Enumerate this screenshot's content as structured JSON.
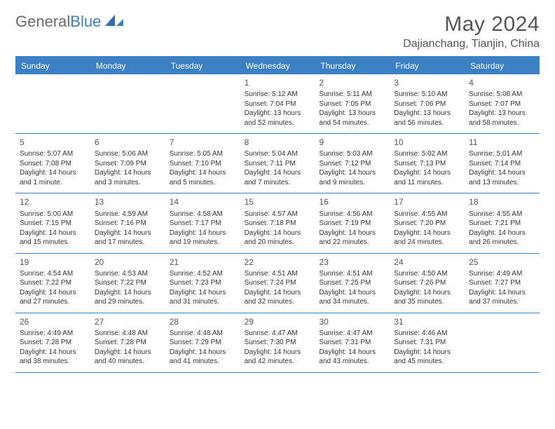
{
  "brand": {
    "name_a": "General",
    "name_b": "Blue"
  },
  "title": "May 2024",
  "location": "Dajianchang, Tianjin, China",
  "colors": {
    "accent": "#3b7fc4",
    "text": "#333333",
    "muted": "#555555",
    "bg": "#ffffff"
  },
  "weekdays": [
    "Sunday",
    "Monday",
    "Tuesday",
    "Wednesday",
    "Thursday",
    "Friday",
    "Saturday"
  ],
  "weeks": [
    [
      null,
      null,
      null,
      {
        "n": "1",
        "sr": "Sunrise: 5:12 AM",
        "ss": "Sunset: 7:04 PM",
        "d1": "Daylight: 13 hours",
        "d2": "and 52 minutes."
      },
      {
        "n": "2",
        "sr": "Sunrise: 5:11 AM",
        "ss": "Sunset: 7:05 PM",
        "d1": "Daylight: 13 hours",
        "d2": "and 54 minutes."
      },
      {
        "n": "3",
        "sr": "Sunrise: 5:10 AM",
        "ss": "Sunset: 7:06 PM",
        "d1": "Daylight: 13 hours",
        "d2": "and 56 minutes."
      },
      {
        "n": "4",
        "sr": "Sunrise: 5:08 AM",
        "ss": "Sunset: 7:07 PM",
        "d1": "Daylight: 13 hours",
        "d2": "and 58 minutes."
      }
    ],
    [
      {
        "n": "5",
        "sr": "Sunrise: 5:07 AM",
        "ss": "Sunset: 7:08 PM",
        "d1": "Daylight: 14 hours",
        "d2": "and 1 minute."
      },
      {
        "n": "6",
        "sr": "Sunrise: 5:06 AM",
        "ss": "Sunset: 7:09 PM",
        "d1": "Daylight: 14 hours",
        "d2": "and 3 minutes."
      },
      {
        "n": "7",
        "sr": "Sunrise: 5:05 AM",
        "ss": "Sunset: 7:10 PM",
        "d1": "Daylight: 14 hours",
        "d2": "and 5 minutes."
      },
      {
        "n": "8",
        "sr": "Sunrise: 5:04 AM",
        "ss": "Sunset: 7:11 PM",
        "d1": "Daylight: 14 hours",
        "d2": "and 7 minutes."
      },
      {
        "n": "9",
        "sr": "Sunrise: 5:03 AM",
        "ss": "Sunset: 7:12 PM",
        "d1": "Daylight: 14 hours",
        "d2": "and 9 minutes."
      },
      {
        "n": "10",
        "sr": "Sunrise: 5:02 AM",
        "ss": "Sunset: 7:13 PM",
        "d1": "Daylight: 14 hours",
        "d2": "and 11 minutes."
      },
      {
        "n": "11",
        "sr": "Sunrise: 5:01 AM",
        "ss": "Sunset: 7:14 PM",
        "d1": "Daylight: 14 hours",
        "d2": "and 13 minutes."
      }
    ],
    [
      {
        "n": "12",
        "sr": "Sunrise: 5:00 AM",
        "ss": "Sunset: 7:15 PM",
        "d1": "Daylight: 14 hours",
        "d2": "and 15 minutes."
      },
      {
        "n": "13",
        "sr": "Sunrise: 4:59 AM",
        "ss": "Sunset: 7:16 PM",
        "d1": "Daylight: 14 hours",
        "d2": "and 17 minutes."
      },
      {
        "n": "14",
        "sr": "Sunrise: 4:58 AM",
        "ss": "Sunset: 7:17 PM",
        "d1": "Daylight: 14 hours",
        "d2": "and 19 minutes."
      },
      {
        "n": "15",
        "sr": "Sunrise: 4:57 AM",
        "ss": "Sunset: 7:18 PM",
        "d1": "Daylight: 14 hours",
        "d2": "and 20 minutes."
      },
      {
        "n": "16",
        "sr": "Sunrise: 4:56 AM",
        "ss": "Sunset: 7:19 PM",
        "d1": "Daylight: 14 hours",
        "d2": "and 22 minutes."
      },
      {
        "n": "17",
        "sr": "Sunrise: 4:55 AM",
        "ss": "Sunset: 7:20 PM",
        "d1": "Daylight: 14 hours",
        "d2": "and 24 minutes."
      },
      {
        "n": "18",
        "sr": "Sunrise: 4:55 AM",
        "ss": "Sunset: 7:21 PM",
        "d1": "Daylight: 14 hours",
        "d2": "and 26 minutes."
      }
    ],
    [
      {
        "n": "19",
        "sr": "Sunrise: 4:54 AM",
        "ss": "Sunset: 7:22 PM",
        "d1": "Daylight: 14 hours",
        "d2": "and 27 minutes."
      },
      {
        "n": "20",
        "sr": "Sunrise: 4:53 AM",
        "ss": "Sunset: 7:22 PM",
        "d1": "Daylight: 14 hours",
        "d2": "and 29 minutes."
      },
      {
        "n": "21",
        "sr": "Sunrise: 4:52 AM",
        "ss": "Sunset: 7:23 PM",
        "d1": "Daylight: 14 hours",
        "d2": "and 31 minutes."
      },
      {
        "n": "22",
        "sr": "Sunrise: 4:51 AM",
        "ss": "Sunset: 7:24 PM",
        "d1": "Daylight: 14 hours",
        "d2": "and 32 minutes."
      },
      {
        "n": "23",
        "sr": "Sunrise: 4:51 AM",
        "ss": "Sunset: 7:25 PM",
        "d1": "Daylight: 14 hours",
        "d2": "and 34 minutes."
      },
      {
        "n": "24",
        "sr": "Sunrise: 4:50 AM",
        "ss": "Sunset: 7:26 PM",
        "d1": "Daylight: 14 hours",
        "d2": "and 35 minutes."
      },
      {
        "n": "25",
        "sr": "Sunrise: 4:49 AM",
        "ss": "Sunset: 7:27 PM",
        "d1": "Daylight: 14 hours",
        "d2": "and 37 minutes."
      }
    ],
    [
      {
        "n": "26",
        "sr": "Sunrise: 4:49 AM",
        "ss": "Sunset: 7:28 PM",
        "d1": "Daylight: 14 hours",
        "d2": "and 38 minutes."
      },
      {
        "n": "27",
        "sr": "Sunrise: 4:48 AM",
        "ss": "Sunset: 7:28 PM",
        "d1": "Daylight: 14 hours",
        "d2": "and 40 minutes."
      },
      {
        "n": "28",
        "sr": "Sunrise: 4:48 AM",
        "ss": "Sunset: 7:29 PM",
        "d1": "Daylight: 14 hours",
        "d2": "and 41 minutes."
      },
      {
        "n": "29",
        "sr": "Sunrise: 4:47 AM",
        "ss": "Sunset: 7:30 PM",
        "d1": "Daylight: 14 hours",
        "d2": "and 42 minutes."
      },
      {
        "n": "30",
        "sr": "Sunrise: 4:47 AM",
        "ss": "Sunset: 7:31 PM",
        "d1": "Daylight: 14 hours",
        "d2": "and 43 minutes."
      },
      {
        "n": "31",
        "sr": "Sunrise: 4:46 AM",
        "ss": "Sunset: 7:31 PM",
        "d1": "Daylight: 14 hours",
        "d2": "and 45 minutes."
      },
      null
    ]
  ]
}
